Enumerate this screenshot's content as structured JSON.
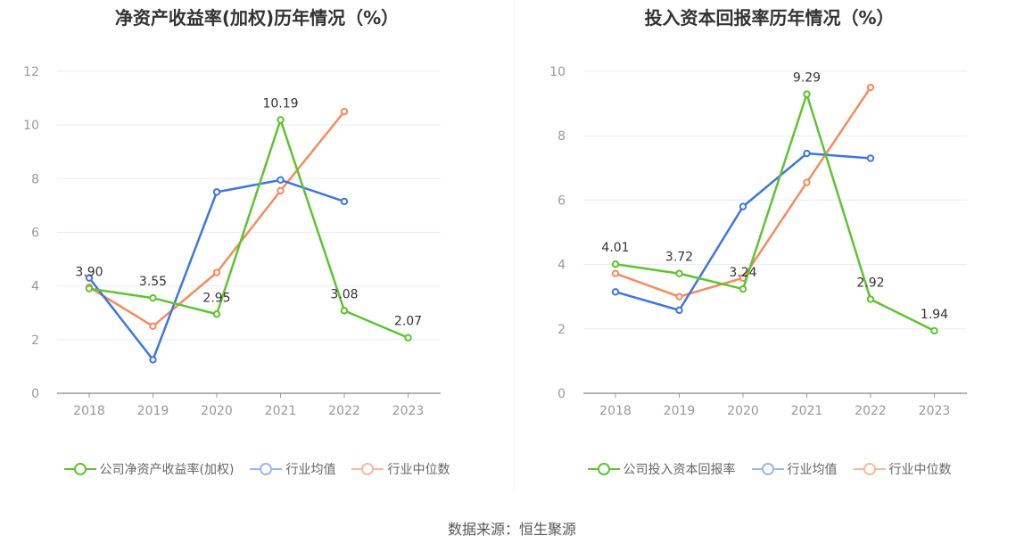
{
  "source_text": "数据来源：恒生聚源",
  "chart_data": [
    {
      "type": "line",
      "title": "净资产收益率(加权)历年情况（%）",
      "categories": [
        "2018",
        "2019",
        "2020",
        "2021",
        "2022",
        "2023"
      ],
      "ylim": [
        0,
        12
      ],
      "yticks": [
        "0",
        "2",
        "4",
        "6",
        "8",
        "10",
        "12"
      ],
      "grid": true,
      "legend_position": "bottom",
      "series": [
        {
          "name": "公司净资产收益率(加权)",
          "color": "#5ec42f",
          "values": [
            3.9,
            3.55,
            2.95,
            10.19,
            3.08,
            2.07
          ],
          "labels": [
            "3.90",
            "3.55",
            "2.95",
            "10.19",
            "3.08",
            "2.07"
          ]
        },
        {
          "name": "行业均值",
          "color": "#3f76e0",
          "values": [
            4.3,
            1.25,
            7.5,
            7.95,
            7.15,
            null
          ]
        },
        {
          "name": "行业中位数",
          "color": "#f58b5e",
          "values": [
            3.95,
            2.5,
            4.5,
            7.55,
            10.5,
            null
          ]
        }
      ]
    },
    {
      "type": "line",
      "title": "投入资本回报率历年情况（%）",
      "categories": [
        "2018",
        "2019",
        "2020",
        "2021",
        "2022",
        "2023"
      ],
      "ylim": [
        0,
        10
      ],
      "yticks": [
        "0",
        "2",
        "4",
        "6",
        "8",
        "10"
      ],
      "grid": true,
      "legend_position": "bottom",
      "series": [
        {
          "name": "公司投入资本回报率",
          "color": "#5ec42f",
          "values": [
            4.01,
            3.72,
            3.24,
            9.29,
            2.92,
            1.94
          ],
          "labels": [
            "4.01",
            "3.72",
            "3.24",
            "9.29",
            "2.92",
            "1.94"
          ]
        },
        {
          "name": "行业均值",
          "color": "#3f76e0",
          "values": [
            3.15,
            2.58,
            5.8,
            7.45,
            7.3,
            null
          ]
        },
        {
          "name": "行业中位数",
          "color": "#f58b5e",
          "values": [
            3.72,
            3.0,
            3.58,
            6.55,
            9.5,
            null
          ]
        }
      ]
    }
  ]
}
